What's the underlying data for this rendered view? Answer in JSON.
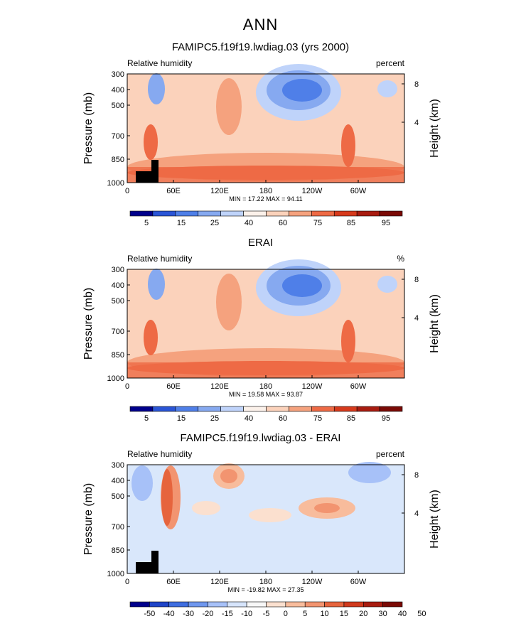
{
  "page_title": "ANN",
  "colors": {
    "scale_11": [
      "#00008b",
      "#2a55d6",
      "#4f7fe8",
      "#86a9f0",
      "#bfd3fa",
      "#fbf1ea",
      "#fbd2bb",
      "#f5a27e",
      "#ee6a45",
      "#d63a1c",
      "#a81c10",
      "#7a0a05"
    ],
    "scale_14": [
      "#00008b",
      "#1f45c8",
      "#3f6ee0",
      "#6f97ee",
      "#a7c1f8",
      "#d6e4fb",
      "#f7f7f7",
      "#fbe0cf",
      "#f8bc9c",
      "#f29470",
      "#e6643d",
      "#d03a1d",
      "#a81c10",
      "#7a0a05"
    ]
  },
  "chart_data": [
    {
      "type": "heatmap",
      "title": "FAMIPC5.f19f19.lwdiag.03 (yrs 2000)",
      "left_label": "Relative humidity",
      "right_label": "percent",
      "ylabel": "Pressure (mb)",
      "y2label": "Height (km)",
      "xticks": [
        "0",
        "60E",
        "120E",
        "180",
        "120W",
        "60W"
      ],
      "yticks": [
        "300",
        "400",
        "500",
        "700",
        "850",
        "1000"
      ],
      "y2ticks": [
        "8",
        "4"
      ],
      "ylim": [
        1000,
        300
      ],
      "stats": {
        "min_label": "MIN =",
        "min": "17.22",
        "max_label": "MAX =",
        "max": "94.11"
      },
      "colorbar_levels": [
        "5",
        "15",
        "25",
        "40",
        "60",
        "75",
        "85",
        "95"
      ],
      "colorbar_scale": "scale_11"
    },
    {
      "type": "heatmap",
      "title": "ERAI",
      "left_label": "Relative humidity",
      "right_label": "%",
      "ylabel": "Pressure (mb)",
      "y2label": "Height (km)",
      "xticks": [
        "0",
        "60E",
        "120E",
        "180",
        "120W",
        "60W"
      ],
      "yticks": [
        "300",
        "400",
        "500",
        "700",
        "850",
        "1000"
      ],
      "y2ticks": [
        "8",
        "4"
      ],
      "ylim": [
        1000,
        300
      ],
      "stats": {
        "min_label": "MIN =",
        "min": "19.58",
        "max_label": "MAX =",
        "max": "93.87"
      },
      "colorbar_levels": [
        "5",
        "15",
        "25",
        "40",
        "60",
        "75",
        "85",
        "95"
      ],
      "colorbar_scale": "scale_11"
    },
    {
      "type": "heatmap",
      "title": "FAMIPC5.f19f19.lwdiag.03 - ERAI",
      "left_label": "Relative humidity",
      "right_label": "percent",
      "ylabel": "Pressure (mb)",
      "y2label": "Height (km)",
      "xticks": [
        "0",
        "60E",
        "120E",
        "180",
        "120W",
        "60W"
      ],
      "yticks": [
        "300",
        "400",
        "500",
        "700",
        "850",
        "1000"
      ],
      "y2ticks": [
        "8",
        "4"
      ],
      "ylim": [
        1000,
        300
      ],
      "stats": {
        "min_label": "MIN =",
        "min": "-19.82",
        "max_label": "MAX =",
        "max": "27.35"
      },
      "colorbar_levels": [
        "-50",
        "-40",
        "-30",
        "-20",
        "-15",
        "-10",
        "-5",
        "0",
        "5",
        "10",
        "15",
        "20",
        "30",
        "40",
        "50"
      ],
      "colorbar_scale": "scale_14"
    }
  ]
}
